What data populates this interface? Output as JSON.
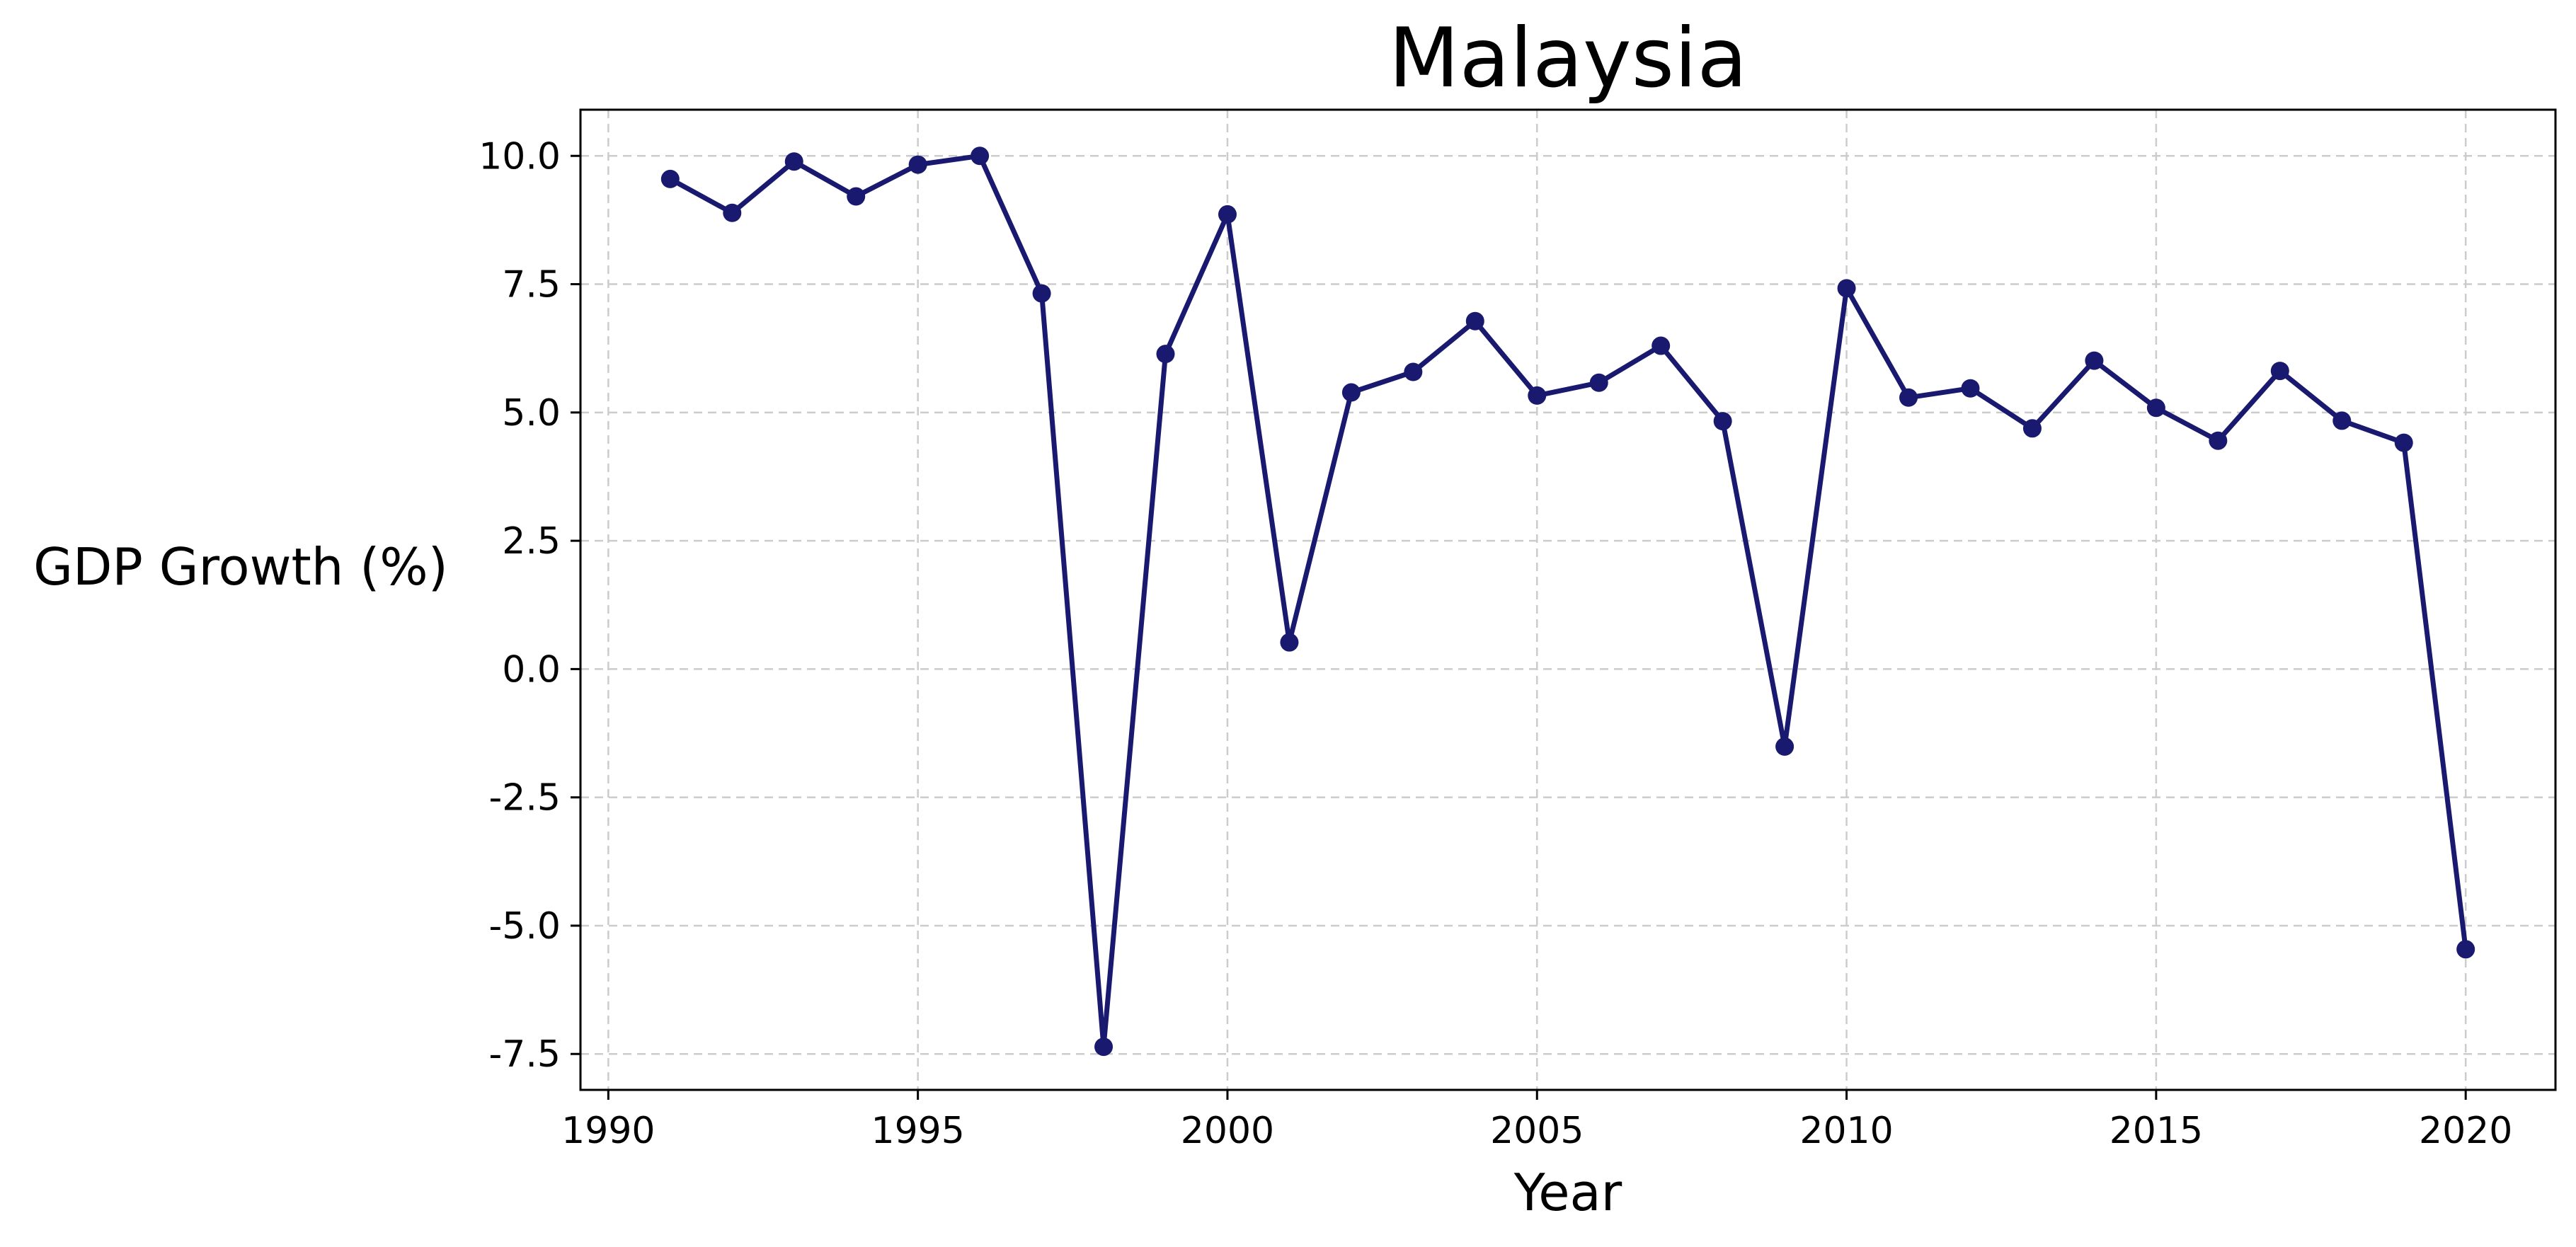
{
  "chart_data": {
    "type": "line",
    "title": "Malaysia",
    "xlabel": "Year",
    "ylabel": "GDP Growth (%)",
    "xlim": [
      1989.55,
      2021.45
    ],
    "ylim": [
      -8.2,
      10.9
    ],
    "xticks": [
      1990,
      1995,
      2000,
      2005,
      2010,
      2015,
      2020
    ],
    "xtick_labels": [
      "1990",
      "1995",
      "2000",
      "2005",
      "2010",
      "2015",
      "2020"
    ],
    "yticks": [
      10.0,
      7.5,
      5.0,
      2.5,
      0.0,
      -2.5,
      -5.0,
      -7.5
    ],
    "ytick_labels": [
      "10.0",
      "7.5",
      "5.0",
      "2.5",
      "0.0",
      "-2.5",
      "-5.0",
      "-7.5"
    ],
    "grid": true,
    "series": [
      {
        "color": "#191970",
        "marker": "circle",
        "x": [
          1991,
          1992,
          1993,
          1994,
          1995,
          1996,
          1997,
          1998,
          1999,
          2000,
          2001,
          2002,
          2003,
          2004,
          2005,
          2006,
          2007,
          2008,
          2009,
          2010,
          2011,
          2012,
          2013,
          2014,
          2015,
          2016,
          2017,
          2018,
          2019,
          2020
        ],
        "y": [
          9.55,
          8.89,
          9.89,
          9.21,
          9.83,
          10.0,
          7.32,
          -7.36,
          6.14,
          8.86,
          0.52,
          5.39,
          5.79,
          6.78,
          5.33,
          5.58,
          6.3,
          4.83,
          -1.51,
          7.42,
          5.29,
          5.47,
          4.69,
          6.01,
          5.09,
          4.45,
          5.81,
          4.84,
          4.41,
          -5.46
        ]
      }
    ]
  }
}
